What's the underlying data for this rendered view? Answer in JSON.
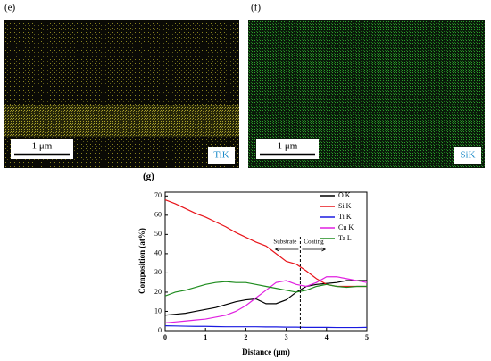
{
  "panels": [
    {
      "label": "(e)",
      "scale": "1 μm",
      "element": "TiK"
    },
    {
      "label": "(f)",
      "scale": "1 μm",
      "element": "SiK"
    }
  ],
  "chart_data": {
    "type": "line",
    "label": "(g)",
    "x_label": "Distance (μm)",
    "y_label": "Composition (at%)",
    "x": [
      0,
      0.25,
      0.5,
      0.75,
      1,
      1.25,
      1.5,
      1.75,
      2,
      2.25,
      2.5,
      2.75,
      3,
      3.25,
      3.5,
      3.75,
      4,
      4.25,
      4.5,
      4.75,
      5
    ],
    "series": [
      {
        "name": "O K",
        "color": "#000000",
        "values": [
          8,
          8.5,
          9,
          10,
          11,
          12,
          13.5,
          15,
          16,
          16.5,
          14,
          14,
          16,
          20,
          23,
          24,
          24.5,
          25,
          26,
          26,
          26
        ]
      },
      {
        "name": "Si K",
        "color": "#e8141a",
        "values": [
          68,
          66,
          63.5,
          61,
          59,
          56.5,
          54,
          51,
          48.5,
          46,
          44,
          40,
          36,
          34.5,
          31,
          27,
          24,
          23,
          23,
          23,
          23
        ]
      },
      {
        "name": "Ti K",
        "color": "#1a1ae0",
        "values": [
          2.5,
          2.4,
          2.3,
          2.2,
          2.2,
          2.1,
          2,
          2,
          2,
          2,
          1.9,
          1.9,
          1.8,
          1.8,
          1.7,
          1.7,
          1.7,
          1.6,
          1.6,
          1.6,
          1.7
        ]
      },
      {
        "name": "Cu K",
        "color": "#e020e0",
        "values": [
          4,
          4.5,
          5,
          5.5,
          6,
          7,
          8,
          10,
          13,
          17,
          21,
          25,
          26,
          24,
          23,
          25,
          28,
          28,
          27,
          26,
          25
        ]
      },
      {
        "name": "Ta L",
        "color": "#1e8c1e",
        "values": [
          18,
          20,
          21,
          22.5,
          24,
          25,
          25.5,
          25,
          25,
          24,
          23,
          22,
          21,
          20,
          21,
          23,
          24,
          23,
          22.5,
          23,
          23
        ]
      }
    ],
    "xlim": [
      0,
      5
    ],
    "xticks": [
      0,
      1,
      2,
      3,
      4,
      5
    ],
    "ylim": [
      0,
      72
    ],
    "yticks": [
      0,
      10,
      20,
      30,
      40,
      50,
      60,
      70
    ],
    "divider_x": 3.35,
    "left_annotation": "Substrate",
    "right_annotation": "Coating",
    "legend": "upper right"
  }
}
